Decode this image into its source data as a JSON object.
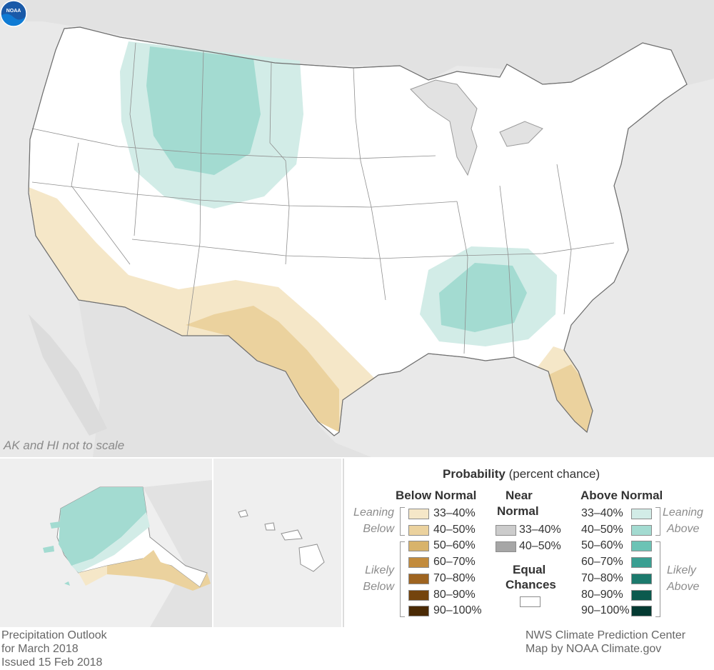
{
  "map": {
    "scale_note": "AK and HI not to scale",
    "logo_text": "NOAA",
    "colors": {
      "land": "#ffffff",
      "background": "#e9e9e9",
      "leaning_above": "#d2ece7",
      "likely_above": "#a3dbd1",
      "leaning_below": "#f5e7c8",
      "likely_below": "#ebd29e"
    }
  },
  "legend": {
    "title": "Probability",
    "title_suffix": "(percent chance)",
    "below": {
      "header": "Below Normal",
      "leaning_label_1": "Leaning",
      "leaning_label_2": "Below",
      "likely_label_1": "Likely",
      "likely_label_2": "Below",
      "items": [
        {
          "label": "33–40%",
          "color": "#f5e7c8"
        },
        {
          "label": "40–50%",
          "color": "#ebd29e"
        },
        {
          "label": "50–60%",
          "color": "#d8b36b"
        },
        {
          "label": "60–70%",
          "color": "#c28b3c"
        },
        {
          "label": "70–80%",
          "color": "#9e6420"
        },
        {
          "label": "80–90%",
          "color": "#74440d"
        },
        {
          "label": "90–100%",
          "color": "#4a2a05"
        }
      ]
    },
    "near": {
      "header_1": "Near",
      "header_2": "Normal",
      "items": [
        {
          "label": "33–40%",
          "color": "#cccccc"
        },
        {
          "label": "40–50%",
          "color": "#a6a6a6"
        }
      ]
    },
    "equal": {
      "header_1": "Equal",
      "header_2": "Chances",
      "color": "#ffffff"
    },
    "above": {
      "header": "Above Normal",
      "leaning_label_1": "Leaning",
      "leaning_label_2": "Above",
      "likely_label_1": "Likely",
      "likely_label_2": "Above",
      "items": [
        {
          "label": "33–40%",
          "color": "#d2ece7"
        },
        {
          "label": "40–50%",
          "color": "#a3dbd1"
        },
        {
          "label": "50–60%",
          "color": "#6cc3b5"
        },
        {
          "label": "60–70%",
          "color": "#3a9f92"
        },
        {
          "label": "70–80%",
          "color": "#1c7a6d"
        },
        {
          "label": "80–90%",
          "color": "#0b5a4e"
        },
        {
          "label": "90–100%",
          "color": "#043a32"
        }
      ]
    }
  },
  "footer": {
    "left_line_1": "Precipitation Outlook",
    "left_line_2": "for March 2018",
    "left_line_3": "Issued 15 Feb 2018",
    "right_line_1": "NWS Climate Prediction Center",
    "right_line_2": "Map by NOAA Climate.gov"
  }
}
